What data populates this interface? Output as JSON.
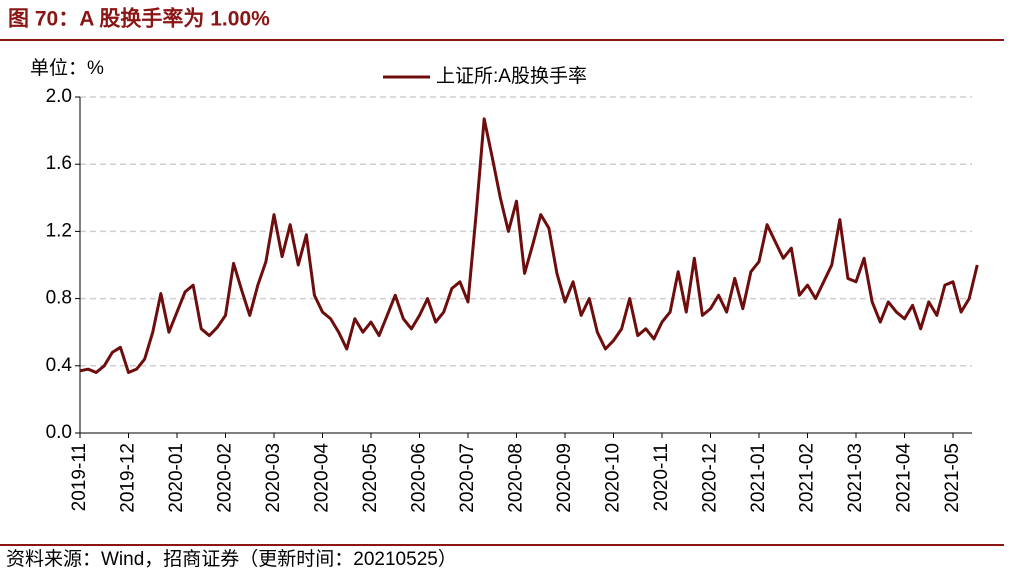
{
  "header": {
    "title": "图 70：A 股换手率为 1.00%"
  },
  "footer": {
    "source": "资料来源：Wind，招商证券（更新时间：20210525）"
  },
  "chart_data": {
    "type": "line",
    "unit_label": "单位：%",
    "x": [
      "2019-11",
      "2019-11",
      "2019-11",
      "2019-11",
      "2019-11",
      "2019-11",
      "2019-12",
      "2019-12",
      "2019-12",
      "2019-12",
      "2019-12",
      "2019-12",
      "2020-01",
      "2020-01",
      "2020-01",
      "2020-01",
      "2020-01",
      "2020-01",
      "2020-02",
      "2020-02",
      "2020-02",
      "2020-02",
      "2020-02",
      "2020-02",
      "2020-03",
      "2020-03",
      "2020-03",
      "2020-03",
      "2020-03",
      "2020-03",
      "2020-04",
      "2020-04",
      "2020-04",
      "2020-04",
      "2020-04",
      "2020-04",
      "2020-05",
      "2020-05",
      "2020-05",
      "2020-05",
      "2020-05",
      "2020-05",
      "2020-06",
      "2020-06",
      "2020-06",
      "2020-06",
      "2020-06",
      "2020-06",
      "2020-07",
      "2020-07",
      "2020-07",
      "2020-07",
      "2020-07",
      "2020-07",
      "2020-08",
      "2020-08",
      "2020-08",
      "2020-08",
      "2020-08",
      "2020-08",
      "2020-09",
      "2020-09",
      "2020-09",
      "2020-09",
      "2020-09",
      "2020-09",
      "2020-10",
      "2020-10",
      "2020-10",
      "2020-10",
      "2020-10",
      "2020-10",
      "2020-11",
      "2020-11",
      "2020-11",
      "2020-11",
      "2020-11",
      "2020-11",
      "2020-12",
      "2020-12",
      "2020-12",
      "2020-12",
      "2020-12",
      "2020-12",
      "2021-01",
      "2021-01",
      "2021-01",
      "2021-01",
      "2021-01",
      "2021-01",
      "2021-02",
      "2021-02",
      "2021-02",
      "2021-02",
      "2021-02",
      "2021-02",
      "2021-03",
      "2021-03",
      "2021-03",
      "2021-03",
      "2021-03",
      "2021-03",
      "2021-04",
      "2021-04",
      "2021-04",
      "2021-04",
      "2021-04",
      "2021-04",
      "2021-05",
      "2021-05",
      "2021-05",
      "2021-05"
    ],
    "series": [
      {
        "name": "上证所:A股换手率",
        "color": "#6e0d0d",
        "values": [
          0.37,
          0.38,
          0.36,
          0.4,
          0.48,
          0.51,
          0.36,
          0.38,
          0.44,
          0.6,
          0.83,
          0.6,
          0.72,
          0.84,
          0.88,
          0.62,
          0.58,
          0.63,
          0.7,
          1.01,
          0.85,
          0.7,
          0.88,
          1.02,
          1.3,
          1.05,
          1.24,
          1.0,
          1.18,
          0.82,
          0.72,
          0.68,
          0.6,
          0.5,
          0.68,
          0.6,
          0.66,
          0.58,
          0.7,
          0.82,
          0.68,
          0.62,
          0.7,
          0.8,
          0.66,
          0.72,
          0.86,
          0.9,
          0.78,
          1.3,
          1.87,
          1.64,
          1.4,
          1.2,
          1.38,
          0.95,
          1.12,
          1.3,
          1.22,
          0.95,
          0.78,
          0.9,
          0.7,
          0.8,
          0.6,
          0.5,
          0.55,
          0.62,
          0.8,
          0.58,
          0.62,
          0.56,
          0.66,
          0.72,
          0.96,
          0.72,
          1.04,
          0.7,
          0.74,
          0.82,
          0.72,
          0.92,
          0.74,
          0.96,
          1.02,
          1.24,
          1.14,
          1.04,
          1.1,
          0.82,
          0.88,
          0.8,
          0.9,
          1.0,
          1.27,
          0.92,
          0.9,
          1.04,
          0.78,
          0.66,
          0.78,
          0.72,
          0.68,
          0.76,
          0.62,
          0.78,
          0.7,
          0.88,
          0.9,
          0.72,
          0.8,
          1.0
        ]
      }
    ],
    "xticks": [
      "2019-11",
      "2019-12",
      "2020-01",
      "2020-02",
      "2020-03",
      "2020-04",
      "2020-05",
      "2020-06",
      "2020-07",
      "2020-08",
      "2020-09",
      "2020-10",
      "2020-11",
      "2020-12",
      "2021-01",
      "2021-02",
      "2021-03",
      "2021-04",
      "2021-05"
    ],
    "ylim": [
      0,
      2
    ],
    "yticks": [
      {
        "value": 0,
        "label": "0.0"
      },
      0.4,
      0.8,
      1.2,
      1.6,
      {
        "value": 2,
        "label": "2.0"
      }
    ],
    "grid": true,
    "legend": "top"
  }
}
